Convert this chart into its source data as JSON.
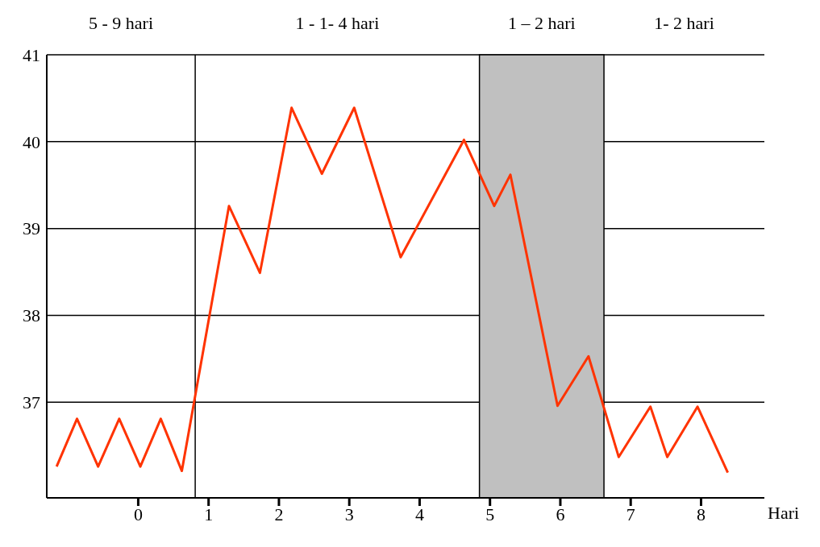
{
  "chart_data": {
    "type": "line",
    "xlabel": "Hari",
    "annotations": [
      "5 - 9 hari",
      "1 - 1- 4 hari",
      "1 – 2 hari",
      "1- 2 hari"
    ],
    "x": [
      -1.16,
      -0.87,
      -0.57,
      -0.27,
      0.03,
      0.32,
      0.62,
      1.29,
      1.73,
      2.18,
      2.61,
      3.07,
      3.73,
      4.63,
      5.06,
      5.29,
      5.96,
      6.4,
      6.83,
      7.28,
      7.52,
      7.95,
      8.38
    ],
    "series": [
      {
        "color": "#ff3300",
        "values": [
          36.26,
          36.81,
          36.26,
          36.81,
          36.26,
          36.81,
          36.21,
          39.26,
          38.49,
          40.39,
          39.63,
          40.39,
          38.67,
          40.02,
          39.26,
          39.62,
          36.96,
          37.53,
          36.37,
          36.95,
          36.37,
          36.95,
          36.19
        ]
      }
    ],
    "xlim": [
      -1.3,
      8.9
    ],
    "xticks": [
      0,
      1,
      2,
      3,
      4,
      5,
      6,
      7,
      8
    ],
    "ylim": [
      35.9,
      41
    ],
    "yticks": [
      37,
      38,
      39,
      40,
      41
    ],
    "grid": "y",
    "marker": "none",
    "line_style": "solid",
    "ref_lines": [
      {
        "axis": "x",
        "value": 0.81,
        "color": "#000000"
      }
    ],
    "bands": [
      {
        "axis": "x",
        "from": 4.85,
        "to": 6.62,
        "color": "#c0c0c0"
      }
    ]
  }
}
